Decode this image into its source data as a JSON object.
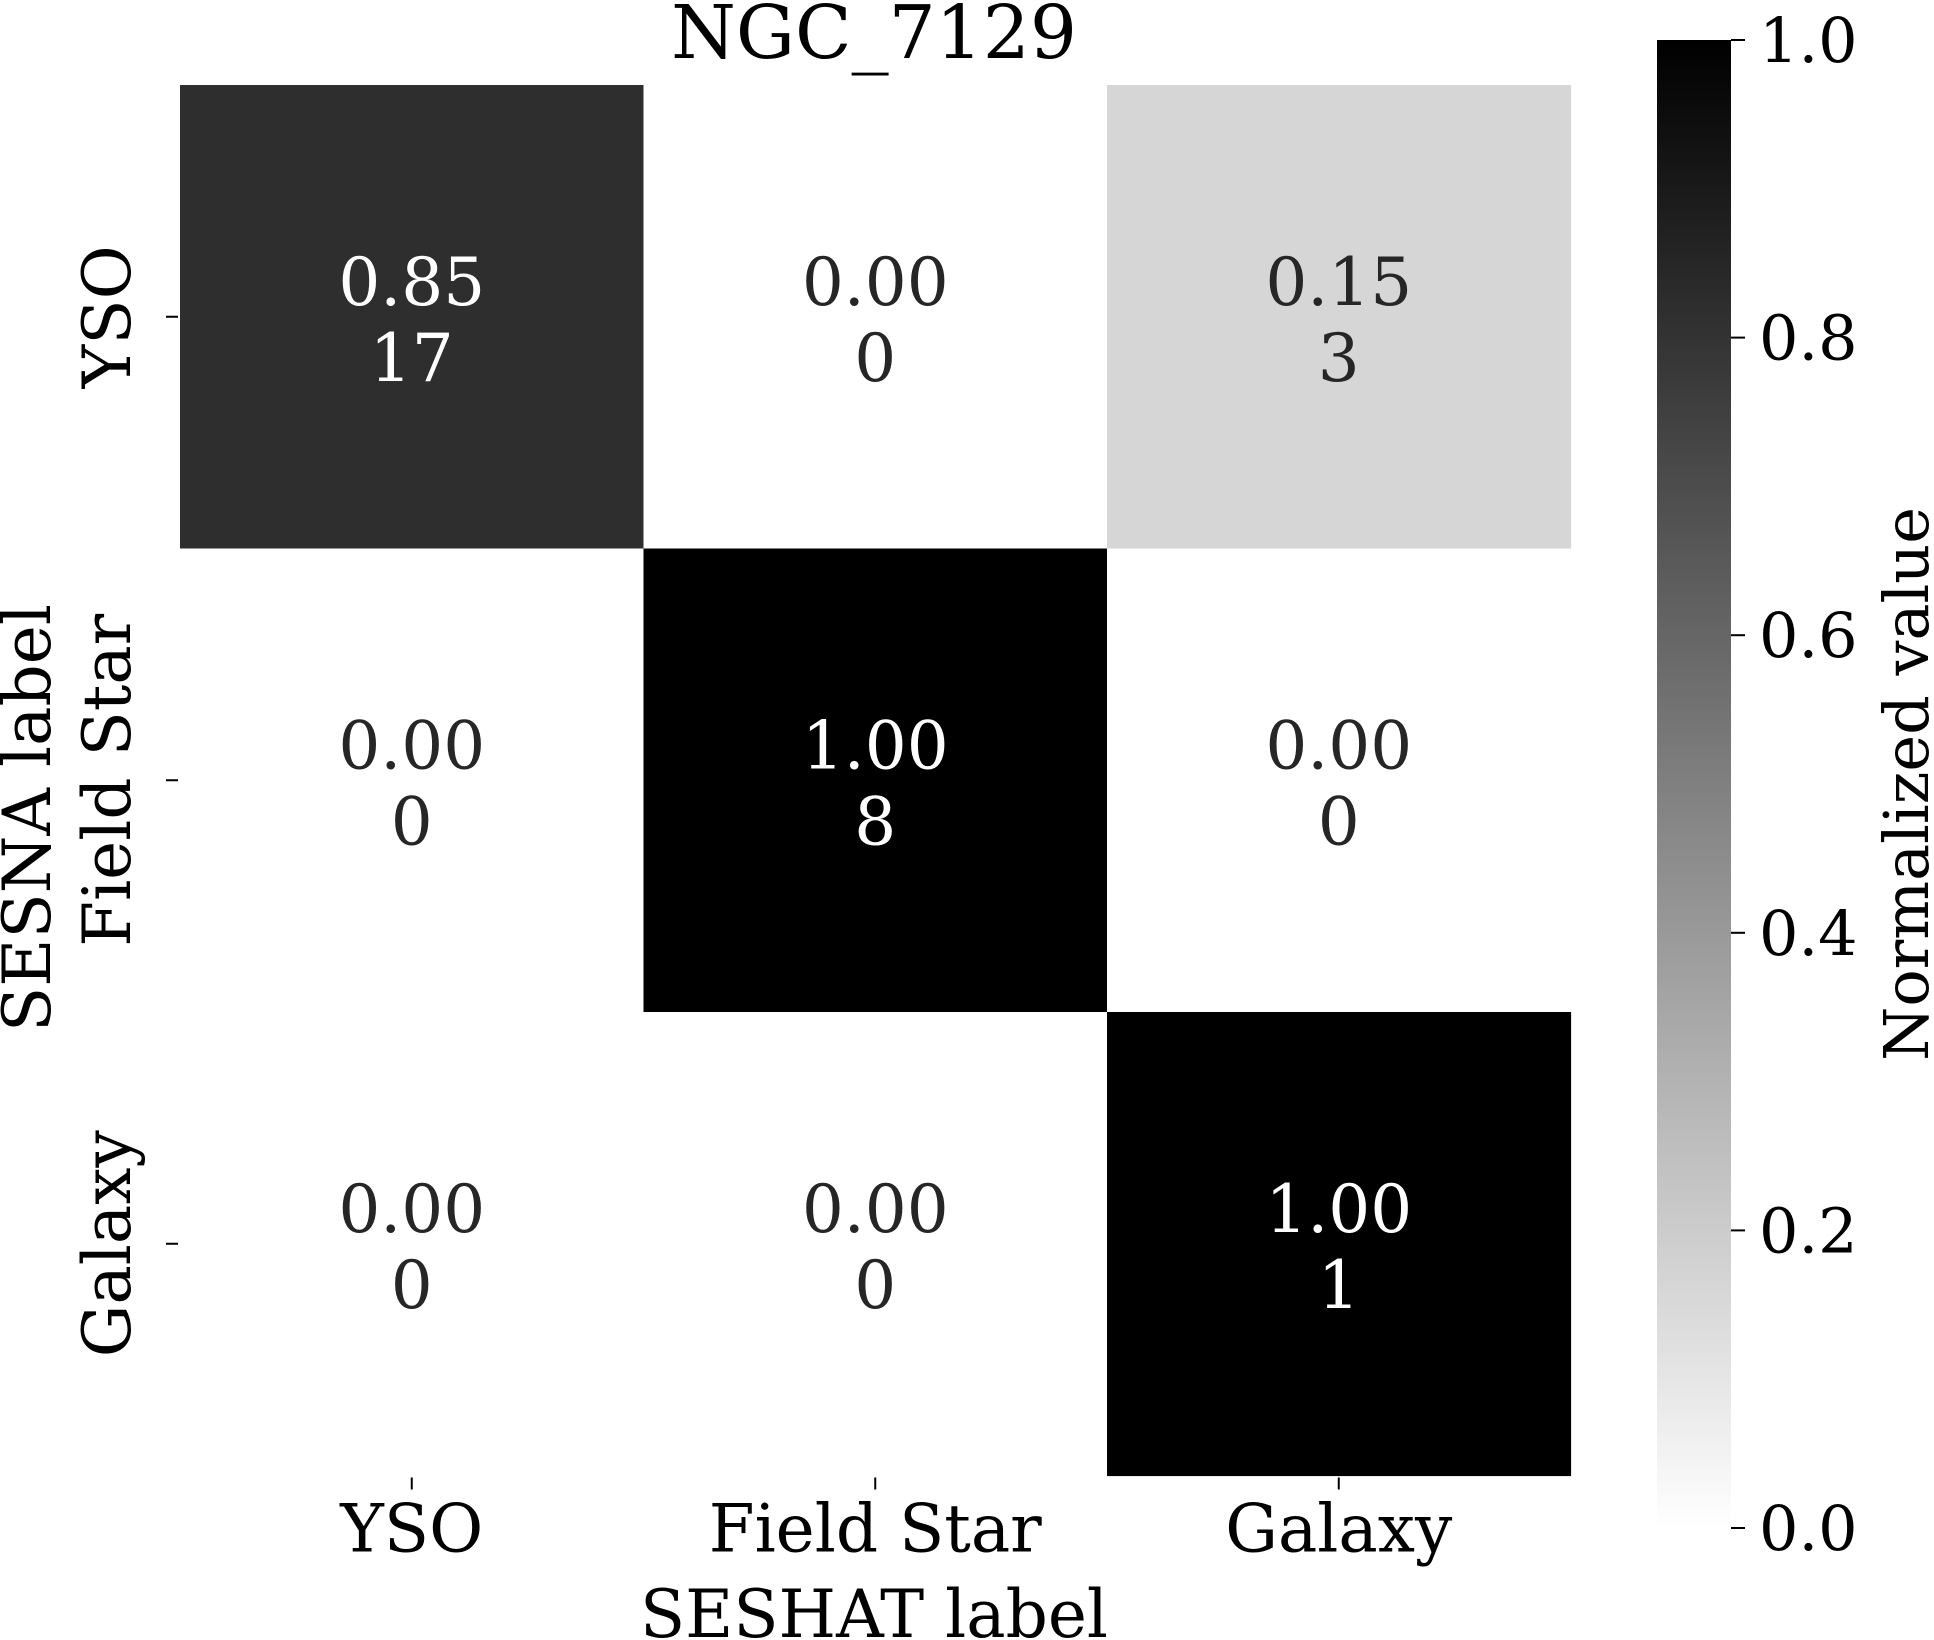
{
  "chart_data": {
    "type": "heatmap",
    "title": "NGC_7129",
    "xlabel": "SESHAT label",
    "ylabel": "SESNA label",
    "x_categories": [
      "YSO",
      "Field Star",
      "Galaxy"
    ],
    "y_categories": [
      "YSO",
      "Field Star",
      "Galaxy"
    ],
    "normalized_values": [
      [
        0.85,
        0.0,
        0.15
      ],
      [
        0.0,
        1.0,
        0.0
      ],
      [
        0.0,
        0.0,
        1.0
      ]
    ],
    "cell_labels": [
      [
        {
          "value": "0.85",
          "count": "17"
        },
        {
          "value": "0.00",
          "count": "0"
        },
        {
          "value": "0.15",
          "count": "3"
        }
      ],
      [
        {
          "value": "0.00",
          "count": "0"
        },
        {
          "value": "1.00",
          "count": "8"
        },
        {
          "value": "0.00",
          "count": "0"
        }
      ],
      [
        {
          "value": "0.00",
          "count": "0"
        },
        {
          "value": "0.00",
          "count": "0"
        },
        {
          "value": "1.00",
          "count": "1"
        }
      ]
    ],
    "colorbar": {
      "label": "Normalized value",
      "range": [
        0,
        1
      ],
      "colormap": "white-to-black",
      "color_min": "#ffffff",
      "color_max": "#000000",
      "ticks": [
        "0.0",
        "0.2",
        "0.4",
        "0.6",
        "0.8",
        "1.0"
      ]
    }
  }
}
